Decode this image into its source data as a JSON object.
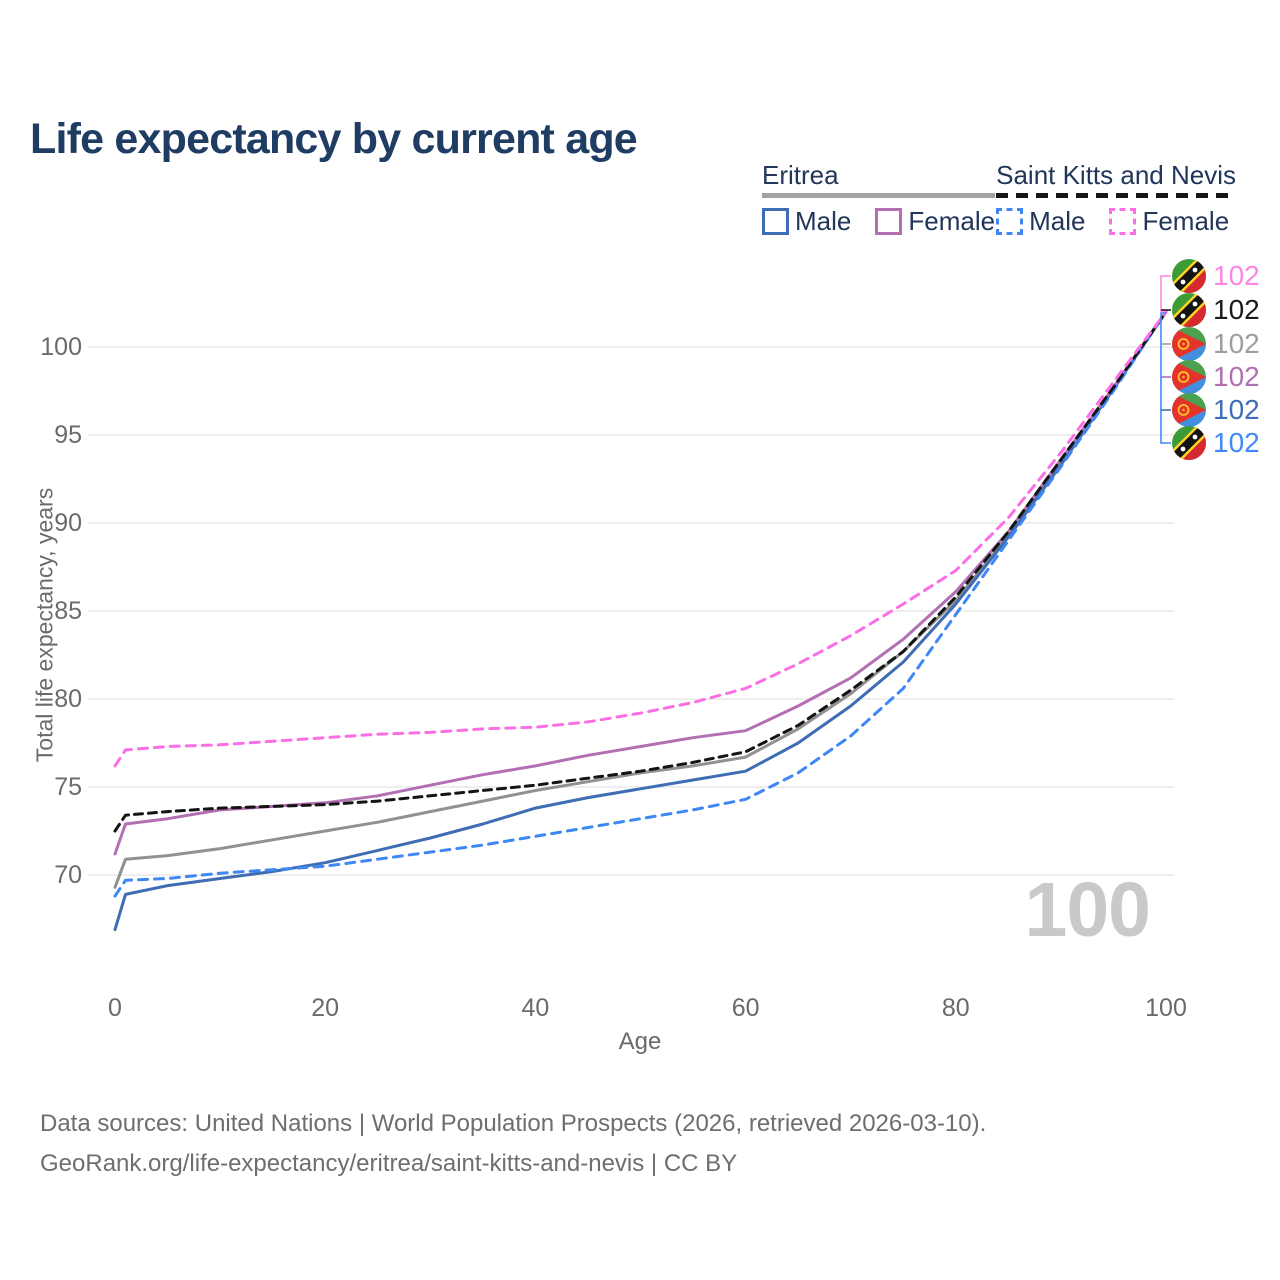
{
  "title": "Life expectancy by current age",
  "legend": {
    "groups": [
      {
        "title": "Eritrea",
        "line_style": "solid-gray",
        "items": [
          {
            "label": "Male"
          },
          {
            "label": "Female"
          }
        ]
      },
      {
        "title": "Saint Kitts and Nevis",
        "line_style": "dashed-black",
        "items": [
          {
            "label": "Male"
          },
          {
            "label": "Female"
          }
        ]
      }
    ]
  },
  "footer": {
    "line1": "Data sources: United Nations | World Population Prospects (2026, retrieved 2026-03-10).",
    "line2": "GeoRank.org/life-expectancy/eritrea/saint-kitts-and-nevis | CC BY"
  },
  "chart_data": {
    "type": "line",
    "title": "Life expectancy by current age",
    "xlabel": "Age",
    "ylabel": "Total life expectancy, years",
    "x_ticks": [
      0,
      20,
      40,
      60,
      80,
      100
    ],
    "y_ticks": [
      70,
      75,
      80,
      85,
      90,
      95,
      100
    ],
    "xlim": [
      0,
      100
    ],
    "ylim": [
      66.5,
      103.5
    ],
    "grid": "horizontal",
    "legend_position": "top-right",
    "age_indicator": "100",
    "ages": [
      0,
      1,
      5,
      10,
      15,
      20,
      25,
      30,
      35,
      40,
      45,
      50,
      55,
      60,
      65,
      70,
      75,
      80,
      85,
      90,
      95,
      100
    ],
    "series": [
      {
        "name": "Eritrea",
        "sex": "both",
        "style": "solid",
        "color": "#919191",
        "values": [
          69.3,
          70.9,
          71.1,
          71.5,
          72.0,
          72.5,
          73.0,
          73.6,
          74.2,
          74.8,
          75.3,
          75.8,
          76.2,
          76.7,
          78.3,
          80.3,
          82.7,
          85.6,
          89.3,
          93.4,
          97.6,
          102
        ]
      },
      {
        "name": "Eritrea – Male",
        "sex": "male",
        "style": "solid",
        "color": "#3e6db4",
        "values": [
          66.9,
          68.9,
          69.4,
          69.8,
          70.2,
          70.7,
          71.4,
          72.1,
          72.9,
          73.8,
          74.4,
          74.9,
          75.4,
          75.9,
          77.5,
          79.6,
          82.1,
          85.4,
          89.2,
          93.3,
          97.6,
          102
        ]
      },
      {
        "name": "Eritrea – Female",
        "sex": "female",
        "style": "solid",
        "color": "#b26fb2",
        "values": [
          71.2,
          72.9,
          73.2,
          73.7,
          73.9,
          74.1,
          74.5,
          75.1,
          75.7,
          76.2,
          76.8,
          77.3,
          77.8,
          78.2,
          79.6,
          81.2,
          83.4,
          86.1,
          89.5,
          93.6,
          97.7,
          102
        ]
      },
      {
        "name": "Saint Kitts and Nevis – Male",
        "sex": "male",
        "style": "dashed",
        "color": "#3f87f5",
        "values": [
          68.8,
          69.7,
          69.8,
          70.1,
          70.3,
          70.5,
          70.9,
          71.3,
          71.7,
          72.2,
          72.7,
          73.2,
          73.7,
          74.3,
          75.8,
          77.9,
          80.6,
          84.8,
          89.0,
          93.2,
          97.5,
          102
        ]
      },
      {
        "name": "Saint Kitts and Nevis",
        "sex": "both",
        "style": "dashed",
        "color": "#141414",
        "values": [
          72.5,
          73.4,
          73.6,
          73.8,
          73.9,
          74.0,
          74.2,
          74.5,
          74.8,
          75.1,
          75.5,
          75.9,
          76.4,
          77.0,
          78.5,
          80.5,
          82.7,
          85.8,
          89.5,
          93.6,
          97.7,
          102
        ]
      },
      {
        "name": "Saint Kitts and Nevis – Female",
        "sex": "female",
        "style": "dashed",
        "color": "#fc6ee6",
        "values": [
          76.2,
          77.1,
          77.3,
          77.4,
          77.6,
          77.8,
          78.0,
          78.1,
          78.3,
          78.4,
          78.7,
          79.2,
          79.8,
          80.6,
          82.0,
          83.6,
          85.4,
          87.3,
          90.3,
          94.0,
          98.0,
          102
        ]
      }
    ],
    "end_labels": [
      {
        "value": "102",
        "color": "#fb87e3",
        "flag": "skn",
        "series": "Saint Kitts and Nevis – Female"
      },
      {
        "value": "102",
        "color": "#1a1a1a",
        "flag": "skn",
        "series": "Saint Kitts and Nevis"
      },
      {
        "value": "102",
        "color": "#9e9e9e",
        "flag": "eritrea",
        "series": "Eritrea"
      },
      {
        "value": "102",
        "color": "#b26fb2",
        "flag": "eritrea",
        "series": "Eritrea – Female"
      },
      {
        "value": "102",
        "color": "#3f6db8",
        "flag": "eritrea",
        "series": "Eritrea – Male"
      },
      {
        "value": "102",
        "color": "#4189f5",
        "flag": "skn",
        "series": "Saint Kitts and Nevis – Male"
      }
    ]
  }
}
